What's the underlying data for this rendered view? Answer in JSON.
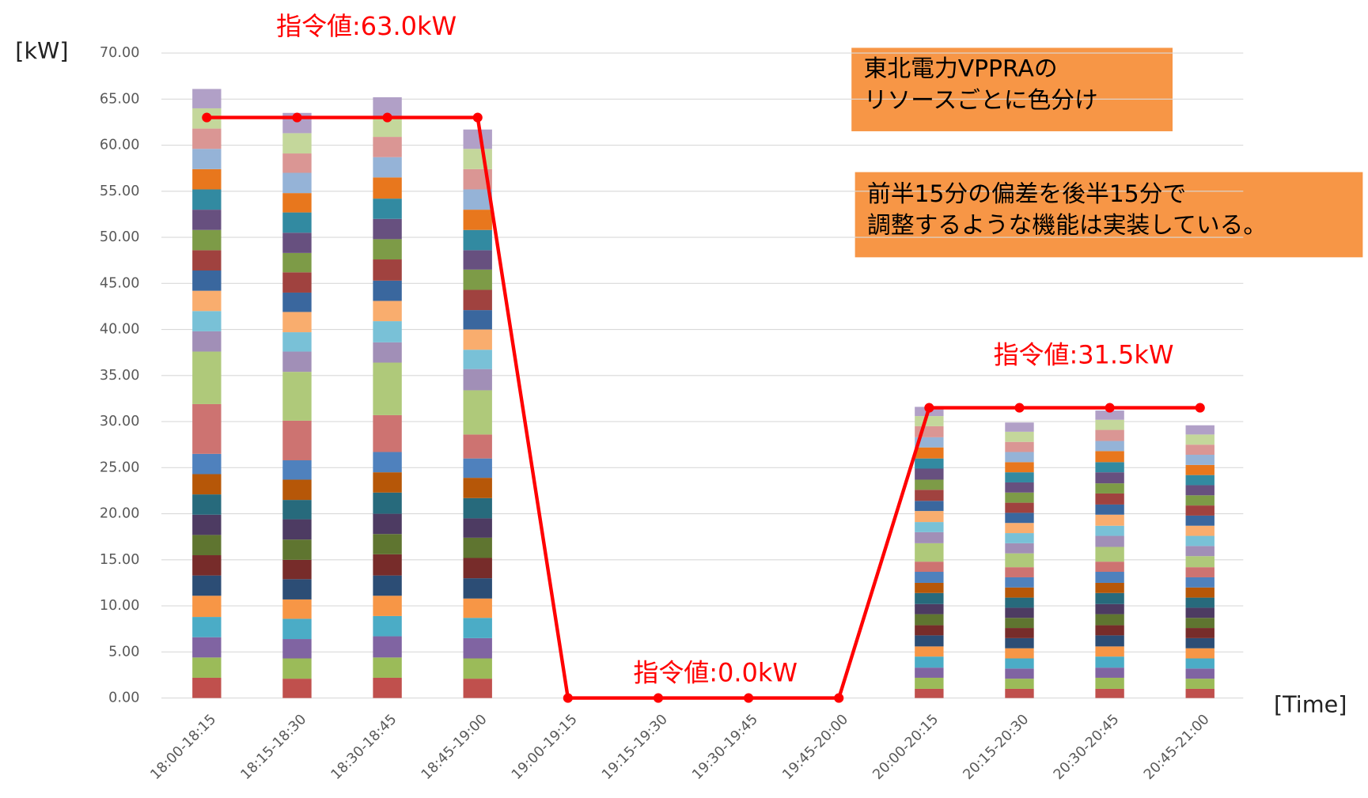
{
  "chart_data": {
    "type": "bar",
    "y_label": "[kW]",
    "x_label": "[Time]",
    "categories": [
      "18:00-18:15",
      "18:15-18:30",
      "18:30-18:45",
      "18:45-19:00",
      "19:00-19:15",
      "19:15-19:30",
      "19:30-19:45",
      "19:45-20:00",
      "20:00-20:15",
      "20:15-20:30",
      "20:30-20:45",
      "20:45-21:00"
    ],
    "ylim": [
      0,
      70
    ],
    "yticks": [
      {
        "value": 0,
        "label": "0.00"
      },
      {
        "value": 5,
        "label": "5.00"
      },
      {
        "value": 10,
        "label": "10.00"
      },
      {
        "value": 15,
        "label": "15.00"
      },
      {
        "value": 20,
        "label": "20.00"
      },
      {
        "value": 25,
        "label": "25.00"
      },
      {
        "value": 30,
        "label": "30.00"
      },
      {
        "value": 35,
        "label": "35.00"
      },
      {
        "value": 40,
        "label": "40.00"
      },
      {
        "value": 45,
        "label": "45.00"
      },
      {
        "value": 50,
        "label": "50.00"
      },
      {
        "value": 55,
        "label": "55.00"
      },
      {
        "value": 60,
        "label": "60.00"
      },
      {
        "value": 65,
        "label": "65.00"
      },
      {
        "value": 70,
        "label": "70.00"
      }
    ],
    "grid": true,
    "series": [
      {
        "color": "#c0504d",
        "values": [
          2.2,
          2.1,
          2.2,
          2.1,
          0,
          0,
          0,
          0,
          1.0,
          1.0,
          1.0,
          1.0
        ]
      },
      {
        "color": "#9bbb59",
        "values": [
          2.2,
          2.2,
          2.2,
          2.2,
          0,
          0,
          0,
          0,
          1.2,
          1.1,
          1.2,
          1.1
        ]
      },
      {
        "color": "#8064a2",
        "values": [
          2.2,
          2.1,
          2.3,
          2.2,
          0,
          0,
          0,
          0,
          1.1,
          1.1,
          1.1,
          1.1
        ]
      },
      {
        "color": "#4bacc6",
        "values": [
          2.2,
          2.2,
          2.2,
          2.2,
          0,
          0,
          0,
          0,
          1.2,
          1.1,
          1.2,
          1.1
        ]
      },
      {
        "color": "#f79646",
        "values": [
          2.3,
          2.1,
          2.2,
          2.1,
          0,
          0,
          0,
          0,
          1.1,
          1.1,
          1.1,
          1.1
        ]
      },
      {
        "color": "#2c4d75",
        "values": [
          2.2,
          2.2,
          2.2,
          2.2,
          0,
          0,
          0,
          0,
          1.2,
          1.1,
          1.2,
          1.1
        ]
      },
      {
        "color": "#772c2a",
        "values": [
          2.2,
          2.1,
          2.3,
          2.2,
          0,
          0,
          0,
          0,
          1.1,
          1.1,
          1.1,
          1.1
        ]
      },
      {
        "color": "#5f7530",
        "values": [
          2.2,
          2.2,
          2.2,
          2.2,
          0,
          0,
          0,
          0,
          1.2,
          1.1,
          1.2,
          1.1
        ]
      },
      {
        "color": "#4d3b62",
        "values": [
          2.2,
          2.2,
          2.2,
          2.1,
          0,
          0,
          0,
          0,
          1.1,
          1.1,
          1.1,
          1.1
        ]
      },
      {
        "color": "#276a7c",
        "values": [
          2.2,
          2.1,
          2.3,
          2.2,
          0,
          0,
          0,
          0,
          1.2,
          1.1,
          1.2,
          1.1
        ]
      },
      {
        "color": "#b65708",
        "values": [
          2.2,
          2.2,
          2.2,
          2.2,
          0,
          0,
          0,
          0,
          1.1,
          1.1,
          1.1,
          1.1
        ]
      },
      {
        "color": "#4f81bd",
        "values": [
          2.2,
          2.1,
          2.2,
          2.1,
          0,
          0,
          0,
          0,
          1.2,
          1.1,
          1.2,
          1.1
        ]
      },
      {
        "color": "#cd7371",
        "values": [
          5.4,
          4.3,
          4.0,
          2.6,
          0,
          0,
          0,
          0,
          1.1,
          1.1,
          1.1,
          1.1
        ]
      },
      {
        "color": "#afc97a",
        "values": [
          5.7,
          5.3,
          5.7,
          4.8,
          0,
          0,
          0,
          0,
          2.0,
          1.5,
          1.6,
          1.2
        ]
      },
      {
        "color": "#a18fb7",
        "values": [
          2.2,
          2.2,
          2.2,
          2.3,
          0,
          0,
          0,
          0,
          1.2,
          1.1,
          1.2,
          1.1
        ]
      },
      {
        "color": "#79c1d7",
        "values": [
          2.2,
          2.1,
          2.3,
          2.1,
          0,
          0,
          0,
          0,
          1.1,
          1.1,
          1.1,
          1.1
        ]
      },
      {
        "color": "#f9ad6e",
        "values": [
          2.2,
          2.2,
          2.2,
          2.2,
          0,
          0,
          0,
          0,
          1.2,
          1.1,
          1.2,
          1.1
        ]
      },
      {
        "color": "#3a679e",
        "values": [
          2.2,
          2.1,
          2.2,
          2.1,
          0,
          0,
          0,
          0,
          1.1,
          1.1,
          1.1,
          1.1
        ]
      },
      {
        "color": "#a0423f",
        "values": [
          2.2,
          2.2,
          2.3,
          2.2,
          0,
          0,
          0,
          0,
          1.2,
          1.1,
          1.2,
          1.1
        ]
      },
      {
        "color": "#7d9b47",
        "values": [
          2.2,
          2.1,
          2.2,
          2.2,
          0,
          0,
          0,
          0,
          1.1,
          1.1,
          1.1,
          1.1
        ]
      },
      {
        "color": "#67507f",
        "values": [
          2.2,
          2.2,
          2.2,
          2.1,
          0,
          0,
          0,
          0,
          1.2,
          1.1,
          1.2,
          1.1
        ]
      },
      {
        "color": "#328aa1",
        "values": [
          2.2,
          2.2,
          2.2,
          2.2,
          0,
          0,
          0,
          0,
          1.1,
          1.1,
          1.1,
          1.1
        ]
      },
      {
        "color": "#e8771d",
        "values": [
          2.2,
          2.1,
          2.3,
          2.2,
          0,
          0,
          0,
          0,
          1.2,
          1.1,
          1.2,
          1.1
        ]
      },
      {
        "color": "#95b3d7",
        "values": [
          2.2,
          2.2,
          2.2,
          2.2,
          0,
          0,
          0,
          0,
          1.1,
          1.1,
          1.1,
          1.1
        ]
      },
      {
        "color": "#da9694",
        "values": [
          2.2,
          2.1,
          2.2,
          2.2,
          0,
          0,
          0,
          0,
          1.2,
          1.1,
          1.2,
          1.1
        ]
      },
      {
        "color": "#c4d79b",
        "values": [
          2.2,
          2.2,
          2.2,
          2.2,
          0,
          0,
          0,
          0,
          1.1,
          1.1,
          1.1,
          1.1
        ]
      },
      {
        "color": "#b1a0c7",
        "values": [
          2.1,
          2.2,
          2.1,
          2.1,
          0,
          0,
          0,
          0,
          1.0,
          1.0,
          1.0,
          1.0
        ]
      }
    ],
    "line": {
      "color": "#ff0000",
      "values": [
        63,
        63,
        63,
        63,
        0,
        0,
        0,
        0,
        31.5,
        31.5,
        31.5,
        31.5
      ]
    },
    "annotations": [
      "指令値:63.0kW",
      "指令値:0.0kW",
      "指令値:31.5kW"
    ],
    "notes": [
      [
        "東北電力VPPRAの",
        "リソースごとに色分け"
      ],
      [
        "前半15分の偏差を後半15分で",
        "調整するような機能は実装している。"
      ]
    ]
  }
}
